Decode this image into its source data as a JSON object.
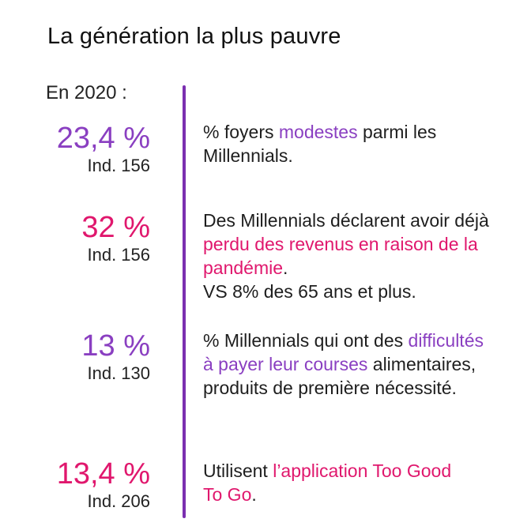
{
  "title": "La génération la plus pauvre",
  "year_label": "En 2020 :",
  "colors": {
    "purple": "#8a3fc1",
    "pink": "#e0176d",
    "divider": "#7b2fb0"
  },
  "stats": [
    {
      "value": "23,4 %",
      "index": "Ind. 156",
      "desc_before": "% foyers ",
      "desc_highlight": "modestes",
      "desc_after": " parmi les Millennials.",
      "extra": ""
    },
    {
      "value": "32 %",
      "index": "Ind. 156",
      "desc_before": "Des Millennials déclarent avoir déjà ",
      "desc_highlight": "perdu des revenus en raison de la pandémie",
      "desc_after": ".",
      "extra": "VS 8% des 65 ans et plus."
    },
    {
      "value": "13 %",
      "index": "Ind. 130",
      "desc_before": "% Millennials qui ont des ",
      "desc_highlight": "difficultés à payer leur courses",
      "desc_after": " alimentaires, produits de première nécessité.",
      "extra": ""
    },
    {
      "value": "13,4 %",
      "index": "Ind. 206",
      "desc_before": "Utilisent ",
      "desc_highlight": "l’application Too Good To Go",
      "desc_after": ".",
      "extra": ""
    }
  ]
}
